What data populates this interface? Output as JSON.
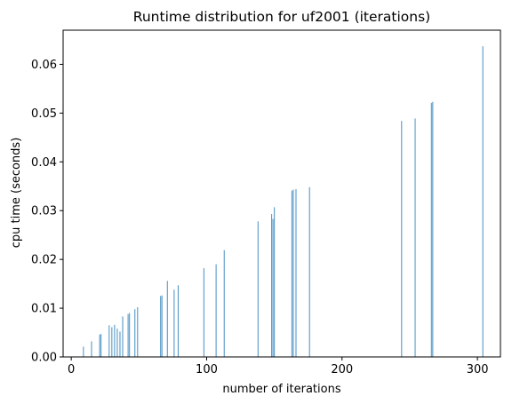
{
  "chart_data": {
    "type": "bar",
    "title": "Runtime distribution for uf2001 (iterations)",
    "xlabel": "number of iterations",
    "ylabel": "cpu time (seconds)",
    "xlim": [
      -6,
      317
    ],
    "ylim": [
      0,
      0.067
    ],
    "xticks": [
      0,
      100,
      200,
      300
    ],
    "xtick_labels": [
      "0",
      "100",
      "200",
      "300"
    ],
    "yticks": [
      0,
      0.01,
      0.02,
      0.03,
      0.04,
      0.05,
      0.06
    ],
    "ytick_labels": [
      "0.00",
      "0.01",
      "0.02",
      "0.03",
      "0.04",
      "0.05",
      "0.06"
    ],
    "grid": false,
    "legend": "none",
    "bar_color": "#1f77b4",
    "x": [
      9,
      15,
      21,
      22,
      28,
      30,
      32,
      34,
      36,
      38,
      42,
      43,
      47,
      49,
      66,
      67,
      71,
      76,
      79,
      98,
      107,
      113,
      138,
      148,
      149,
      150,
      163,
      164,
      166,
      176,
      244,
      254,
      266,
      267,
      304
    ],
    "values": [
      0.0021,
      0.0032,
      0.0046,
      0.0047,
      0.0065,
      0.0061,
      0.0066,
      0.0058,
      0.0052,
      0.0083,
      0.0088,
      0.009,
      0.0098,
      0.0102,
      0.0125,
      0.0126,
      0.0156,
      0.0138,
      0.0147,
      0.0182,
      0.019,
      0.0219,
      0.0278,
      0.0293,
      0.0283,
      0.0307,
      0.0341,
      0.0343,
      0.0344,
      0.0348,
      0.0484,
      0.0489,
      0.0521,
      0.0523,
      0.0637
    ]
  }
}
